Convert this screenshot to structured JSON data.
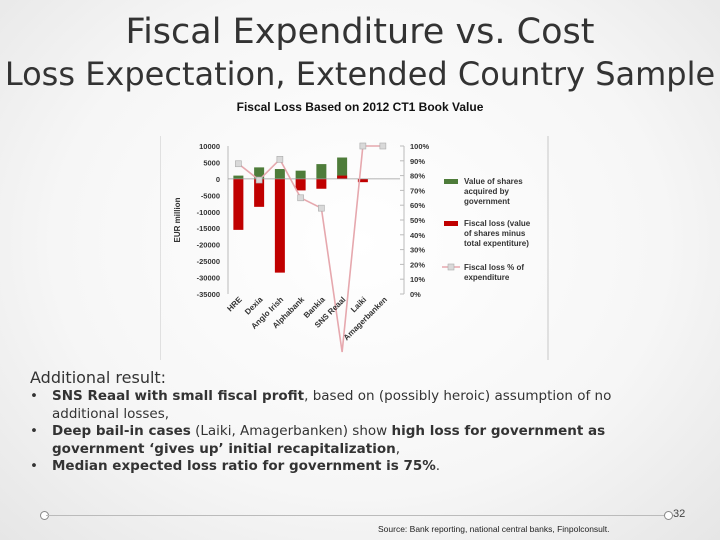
{
  "slide": {
    "title_line1": "Fiscal Expenditure vs. Cost",
    "title_line2": "Loss Expectation, Extended Country Sample",
    "chart_title": "Fiscal Loss Based on 2012 CT1 Book Value",
    "additional_label": "Additional result:",
    "bullets": [
      {
        "bold": "SNS Reaal with small fiscal profit",
        "normal": ", based on (possibly heroic) assumption of no additional losses,"
      },
      {
        "bold": "Deep bail-in cases",
        "normal": " (Laiki, Amagerbanken) show ",
        "bold2": "high loss for government as government ‘gives up’ initial recapitalization",
        "normal2": ","
      },
      {
        "bold": "Median expected loss ratio for government is 75%",
        "normal": "."
      }
    ],
    "bullet_glyph": "•",
    "page_number": "32",
    "source": "Source: Bank reporting, national central banks, Finpolconsult."
  },
  "colors": {
    "green": "#4e7c3a",
    "red": "#c00000",
    "line": "#e6a8ae",
    "marker_fill": "#d9d9d9"
  },
  "chart_data": {
    "type": "bar",
    "title": "Fiscal Loss Based on 2012 CT1 Book Value",
    "ylabel": "EUR million",
    "ylim": [
      -35000,
      10000
    ],
    "y_ticks": [
      "10000",
      "5000",
      "0",
      "-5000",
      "-10000",
      "-15000",
      "-20000",
      "-25000",
      "-30000",
      "-35000"
    ],
    "y2lim": [
      0,
      100
    ],
    "y2_ticks": [
      "100%",
      "90%",
      "80%",
      "70%",
      "60%",
      "50%",
      "40%",
      "30%",
      "20%",
      "10%",
      "0%"
    ],
    "categories": [
      "HRE",
      "Dexia",
      "Anglo Irish",
      "Alphabank",
      "Bankia",
      "SNS Reaal",
      "Laiki",
      "Amagerbanken"
    ],
    "series": [
      {
        "name": "Value of shares acquired by government",
        "type": "bar",
        "values": [
          1000,
          3500,
          3000,
          2500,
          4500,
          6500,
          0,
          0
        ]
      },
      {
        "name": "Fiscal loss (value of shares minus total expentiture)",
        "type": "bar",
        "values": [
          -15500,
          -8500,
          -28500,
          -3500,
          -3000,
          1000,
          -1000,
          0
        ]
      },
      {
        "name": "Fiscal loss % of expenditure",
        "type": "line",
        "axis": "secondary",
        "values": [
          88,
          77,
          91,
          65,
          58,
          -97,
          100,
          100
        ]
      }
    ],
    "legend": [
      "Value of shares acquired by government",
      "Fiscal loss (value of shares minus total expentiture)",
      "Fiscal loss % of expenditure"
    ],
    "legend_position": "right"
  }
}
